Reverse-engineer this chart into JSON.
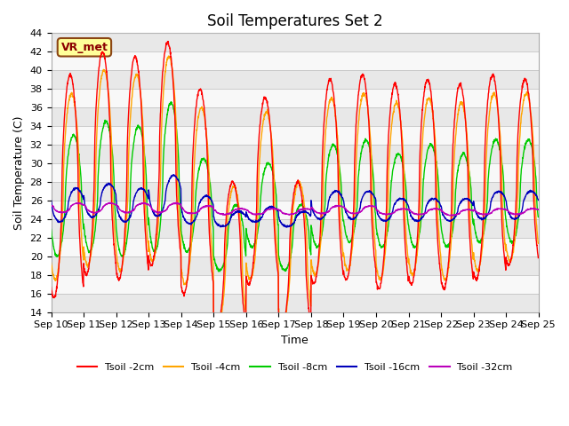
{
  "title": "Soil Temperatures Set 2",
  "xlabel": "Time",
  "ylabel": "Soil Temperature (C)",
  "ylim": [
    14,
    44
  ],
  "yticks": [
    14,
    16,
    18,
    20,
    22,
    24,
    26,
    28,
    30,
    32,
    34,
    36,
    38,
    40,
    42,
    44
  ],
  "n_days": 15,
  "points_per_day": 144,
  "series": [
    {
      "label": "Tsoil -2cm",
      "color": "#FF0000"
    },
    {
      "label": "Tsoil -4cm",
      "color": "#FFA500"
    },
    {
      "label": "Tsoil -8cm",
      "color": "#00CC00"
    },
    {
      "label": "Tsoil -16cm",
      "color": "#0000BB"
    },
    {
      "label": "Tsoil -32cm",
      "color": "#BB00BB"
    }
  ],
  "annotation_text": "VR_met",
  "fig_bg_color": "#FFFFFF",
  "plot_bg_color": "#FFFFFF",
  "band_colors": [
    "#E8E8E8",
    "#F8F8F8"
  ],
  "grid_color": "#CCCCCC",
  "title_fontsize": 12,
  "label_fontsize": 9,
  "tick_fontsize": 8
}
